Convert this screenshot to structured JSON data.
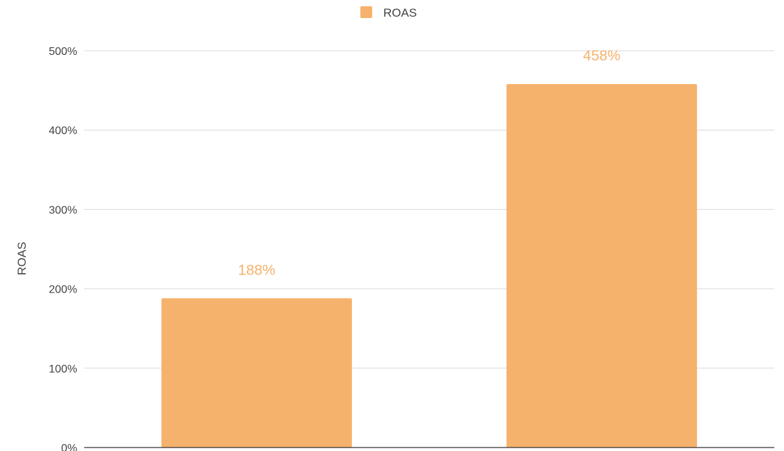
{
  "chart_data": {
    "type": "bar",
    "title": "",
    "xlabel": "",
    "ylabel": "ROAS",
    "categories": [
      "",
      ""
    ],
    "series": [
      {
        "name": "ROAS",
        "values": [
          188,
          458
        ],
        "data_labels": [
          "188%",
          "458%"
        ],
        "color": "#F5B26C"
      }
    ],
    "ylim": [
      0,
      500
    ],
    "yticks": [
      0,
      100,
      200,
      300,
      400,
      500
    ],
    "ytick_labels": [
      "0%",
      "100%",
      "200%",
      "300%",
      "400%",
      "500%"
    ],
    "grid": true,
    "legend": "top-center",
    "colors": {
      "bar": "#F5B26C",
      "data_label": "#F5B26C",
      "grid": "#d9d9d9",
      "axis": "#333333",
      "text": "#444444"
    }
  }
}
